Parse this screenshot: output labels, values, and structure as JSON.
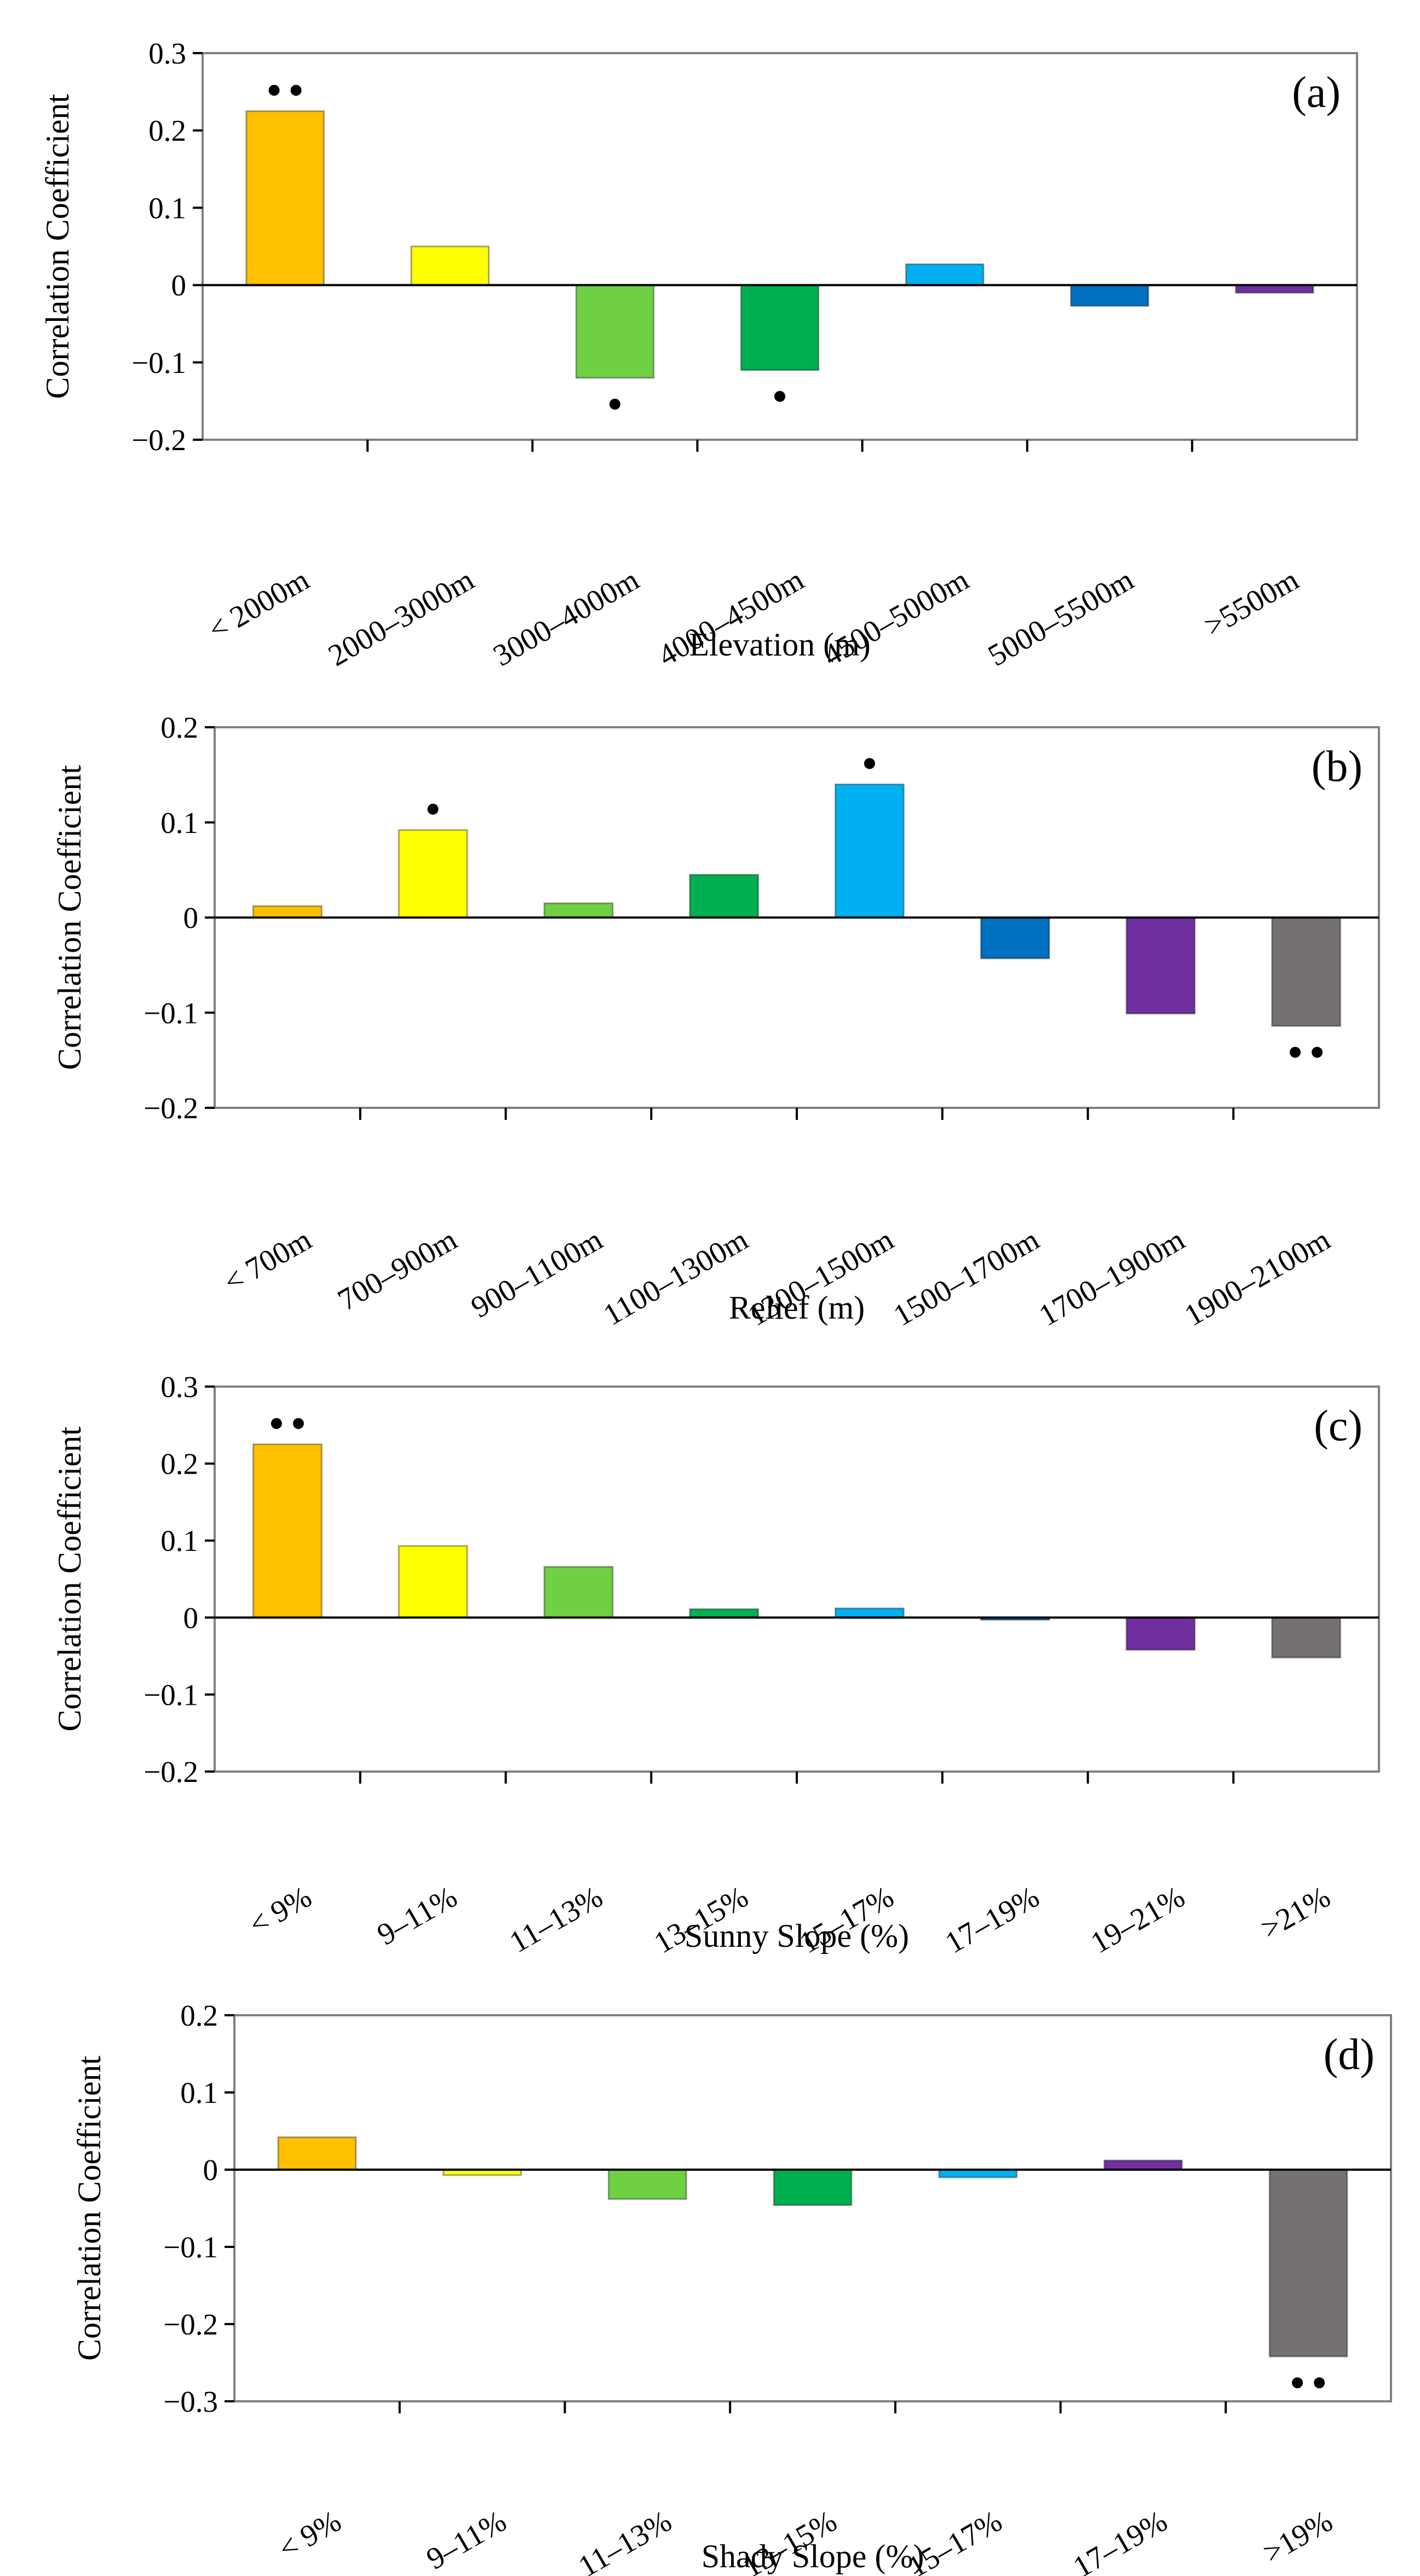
{
  "chart_data": [
    {
      "type": "bar",
      "panel_label": "(a)",
      "xlabel": "Elevation (m)",
      "ylabel": "Correlation Coefficient",
      "ylim": [
        -0.2,
        0.3
      ],
      "yticks": [
        0.3,
        0.2,
        0.1,
        0,
        -0.1,
        -0.2
      ],
      "ytick_labels": [
        "0.3",
        "0.2",
        "0.1",
        "0",
        "−0.1",
        "−0.2"
      ],
      "categories": [
        "< 2000m",
        "2000–3000m",
        "3000–4000m",
        "4000–4500m",
        "4500–5000m",
        "5000–5500m",
        ">5500m"
      ],
      "values": [
        0.225,
        0.05,
        -0.12,
        -0.11,
        0.027,
        -0.027,
        -0.01
      ],
      "significance": [
        "**",
        "",
        "*",
        "*",
        "",
        "",
        ""
      ],
      "colors": [
        "#FFC000",
        "#FFFF00",
        "#70D044",
        "#00B050",
        "#00B0F0",
        "#0070C0",
        "#7030A0"
      ]
    },
    {
      "type": "bar",
      "panel_label": "(b)",
      "xlabel": "Relief (m)",
      "ylabel": "Correlation Coefficient",
      "ylim": [
        -0.2,
        0.2
      ],
      "yticks": [
        0.2,
        0.1,
        0,
        -0.1,
        -0.2
      ],
      "ytick_labels": [
        "0.2",
        "0.1",
        "0",
        "−0.1",
        "−0.2"
      ],
      "categories": [
        "< 700m",
        "700–900m",
        "900–1100m",
        "1100–1300m",
        "1300–1500m",
        "1500–1700m",
        "1700–1900m",
        "1900–2100m"
      ],
      "values": [
        0.012,
        0.092,
        0.015,
        0.045,
        0.14,
        -0.043,
        -0.101,
        -0.114
      ],
      "significance": [
        "",
        "*",
        "",
        "",
        "*",
        "",
        "",
        "**"
      ],
      "colors": [
        "#FFC000",
        "#FFFF00",
        "#70D044",
        "#00B050",
        "#00B0F0",
        "#0070C0",
        "#7030A0",
        "#767171"
      ]
    },
    {
      "type": "bar",
      "panel_label": "(c)",
      "xlabel": "Sunny Slope (%)",
      "ylabel": "Correlation Coefficient",
      "ylim": [
        -0.2,
        0.3
      ],
      "yticks": [
        0.3,
        0.2,
        0.1,
        0,
        -0.1,
        -0.2
      ],
      "ytick_labels": [
        "0.3",
        "0.2",
        "0.1",
        "0",
        "−0.1",
        "−0.2"
      ],
      "categories": [
        "< 9%",
        "9–11%",
        "11–13%",
        "13–15%",
        "15–17%",
        "17–19%",
        "19–21%",
        ">21%"
      ],
      "values": [
        0.225,
        0.093,
        0.066,
        0.011,
        0.012,
        -0.003,
        -0.042,
        -0.052
      ],
      "significance": [
        "**",
        "",
        "",
        "",
        "",
        "",
        "",
        ""
      ],
      "colors": [
        "#FFC000",
        "#FFFF00",
        "#70D044",
        "#00B050",
        "#00B0F0",
        "#0070C0",
        "#7030A0",
        "#767171"
      ]
    },
    {
      "type": "bar",
      "panel_label": "(d)",
      "xlabel": "Shady Slope (%)",
      "ylabel": "Correlation Coefficient",
      "ylim": [
        -0.3,
        0.2
      ],
      "yticks": [
        0.2,
        0.1,
        0,
        -0.1,
        -0.2,
        -0.3
      ],
      "ytick_labels": [
        "0.2",
        "0.1",
        "0",
        "−0.1",
        "−0.2",
        "−0.3"
      ],
      "categories": [
        "< 9%",
        "9–11%",
        "11–13%",
        "13–15%",
        "15–17%",
        "17–19%",
        ">19%"
      ],
      "values": [
        0.042,
        -0.007,
        -0.038,
        -0.046,
        -0.01,
        0.012,
        -0.242
      ],
      "significance": [
        "",
        "",
        "",
        "",
        "",
        "",
        "**"
      ],
      "colors": [
        "#FFC000",
        "#FFFF00",
        "#70D044",
        "#00B050",
        "#00B0F0",
        "#7030A0",
        "#767171"
      ]
    }
  ]
}
